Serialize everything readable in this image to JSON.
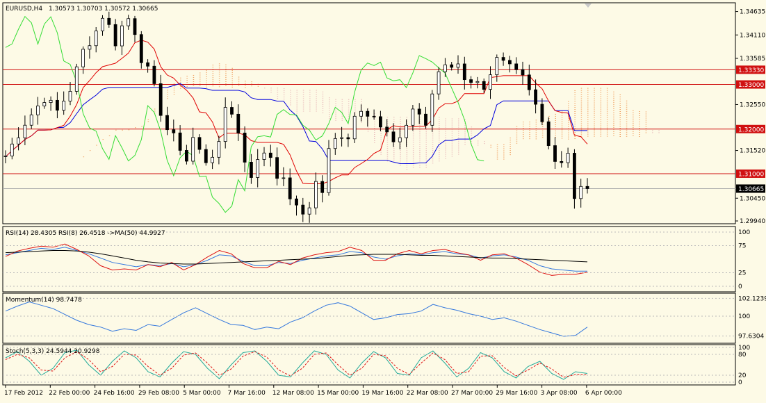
{
  "header": {
    "symbol": "EURUSD,H4",
    "ohlc": "1.30573 1.30703 1.30572 1.30665"
  },
  "colors": {
    "background": "#fdfae6",
    "candle": "#000000",
    "tenkan": "#e00000",
    "kijun": "#0000dd",
    "chikou": "#33dd33",
    "cloud_up": "#f0a060",
    "cloud_down": "#e8b8b8",
    "hline": "#d01010",
    "rsi14": "#3377dd",
    "rsi8": "#dd1111",
    "rsi_ma": "#000000",
    "momentum": "#3377dd",
    "stoch_main": "#22aa99",
    "stoch_signal": "#dd1111"
  },
  "chart_data": [
    {
      "type": "candlestick",
      "title": "EURUSD,H4",
      "ylim": [
        1.2994,
        1.348
      ],
      "y_ticks": [
        "1.34635",
        "1.34110",
        "1.33585",
        "1.32550",
        "1.31520",
        "1.30450",
        "1.29940"
      ],
      "hlines": [
        {
          "value": 1.3333,
          "label": "1.33330"
        },
        {
          "value": 1.33,
          "label": "1.33000"
        },
        {
          "value": 1.32,
          "label": "1.32000"
        },
        {
          "value": 1.31,
          "label": "1.31000"
        }
      ],
      "current_price": {
        "value": 1.30665,
        "label": "1.30665"
      },
      "x_ticks": [
        "17 Feb 2012",
        "22 Feb 00:00",
        "24 Feb 16:00",
        "29 Feb 08:00",
        "5 Mar 00:00",
        "7 Mar 16:00",
        "12 Mar 08:00",
        "15 Mar 00:00",
        "19 Mar 16:00",
        "22 Mar 08:00",
        "27 Mar 00:00",
        "29 Mar 16:00",
        "3 Apr 08:00",
        "6 Apr 00:00"
      ],
      "close_path": [
        [
          0,
          1.314
        ],
        [
          3,
          1.3215
        ],
        [
          6,
          1.327
        ],
        [
          8,
          1.324
        ],
        [
          10,
          1.329
        ],
        [
          12,
          1.3375
        ],
        [
          14,
          1.342
        ],
        [
          15,
          1.3455
        ],
        [
          16,
          1.343
        ],
        [
          17,
          1.3395
        ],
        [
          18,
          1.343
        ],
        [
          19,
          1.3448
        ],
        [
          20,
          1.342
        ],
        [
          21,
          1.336
        ],
        [
          22,
          1.333
        ],
        [
          23,
          1.329
        ],
        [
          24,
          1.324
        ],
        [
          25,
          1.32
        ],
        [
          26,
          1.318
        ],
        [
          27,
          1.316
        ],
        [
          28,
          1.313
        ],
        [
          29,
          1.318
        ],
        [
          30,
          1.315
        ],
        [
          31,
          1.313
        ],
        [
          33,
          1.316
        ],
        [
          34,
          1.325
        ],
        [
          35,
          1.324
        ],
        [
          36,
          1.319
        ],
        [
          37,
          1.313
        ],
        [
          38,
          1.31
        ],
        [
          40,
          1.315
        ],
        [
          41,
          1.314
        ],
        [
          42,
          1.31
        ],
        [
          43,
          1.308
        ],
        [
          44,
          1.305
        ],
        [
          45,
          1.302
        ],
        [
          46,
          1.301
        ],
        [
          47,
          1.303
        ],
        [
          48,
          1.308
        ],
        [
          49,
          1.306
        ],
        [
          50,
          1.315
        ],
        [
          51,
          1.3175
        ],
        [
          52,
          1.319
        ],
        [
          53,
          1.3185
        ],
        [
          54,
          1.323
        ],
        [
          55,
          1.325
        ],
        [
          56,
          1.324
        ],
        [
          57,
          1.323
        ],
        [
          58,
          1.32
        ],
        [
          59,
          1.319
        ],
        [
          60,
          1.316
        ],
        [
          62,
          1.321
        ],
        [
          63,
          1.3245
        ],
        [
          64,
          1.3235
        ],
        [
          65,
          1.32
        ],
        [
          66,
          1.328
        ],
        [
          67,
          1.333
        ],
        [
          68,
          1.335
        ],
        [
          69,
          1.3345
        ],
        [
          70,
          1.334
        ],
        [
          71,
          1.332
        ],
        [
          72,
          1.331
        ],
        [
          73,
          1.33
        ],
        [
          74,
          1.328
        ],
        [
          75,
          1.331
        ],
        [
          76,
          1.335
        ],
        [
          77,
          1.3345
        ],
        [
          78,
          1.334
        ],
        [
          79,
          1.333
        ],
        [
          80,
          1.332
        ],
        [
          81,
          1.33
        ],
        [
          82,
          1.326
        ],
        [
          83,
          1.322
        ],
        [
          84,
          1.317
        ],
        [
          85,
          1.313
        ],
        [
          86,
          1.312
        ],
        [
          87,
          1.314
        ],
        [
          88,
          1.305
        ],
        [
          89,
          1.306
        ],
        [
          90,
          1.3067
        ]
      ],
      "indicators": [
        "Ichimoku Kinko Hyo"
      ]
    },
    {
      "type": "line",
      "title": "RSI(14) 28.4305",
      "legend": [
        "RSI(14) 28.4305",
        "RSI(8) 26.4518",
        "->MA(50) 44.9927"
      ],
      "ylim": [
        0,
        100
      ],
      "y_ticks": [
        "100",
        "75",
        "25",
        "0"
      ],
      "series": [
        {
          "name": "RSI(14) 28.4305",
          "values": [
            58,
            62,
            66,
            70,
            68,
            72,
            66,
            60,
            52,
            44,
            40,
            36,
            40,
            38,
            42,
            36,
            40,
            48,
            58,
            56,
            46,
            38,
            38,
            44,
            42,
            48,
            52,
            56,
            58,
            64,
            62,
            54,
            50,
            56,
            60,
            58,
            62,
            64,
            60,
            58,
            52,
            56,
            58,
            54,
            48,
            38,
            32,
            30,
            28,
            28
          ]
        },
        {
          "name": "RSI(8) 26.4518",
          "values": [
            55,
            65,
            70,
            74,
            72,
            78,
            68,
            56,
            38,
            30,
            32,
            30,
            40,
            36,
            44,
            30,
            40,
            54,
            66,
            60,
            42,
            34,
            34,
            46,
            40,
            52,
            58,
            62,
            64,
            72,
            66,
            48,
            48,
            60,
            66,
            60,
            66,
            68,
            62,
            58,
            48,
            58,
            60,
            52,
            40,
            26,
            20,
            22,
            22,
            26
          ]
        },
        {
          "name": "->MA(50) 44.9927",
          "values": [
            62,
            63,
            64,
            65,
            66,
            66,
            65,
            63,
            60,
            56,
            52,
            48,
            45,
            43,
            42,
            41,
            41,
            42,
            43,
            44,
            45,
            46,
            47,
            48,
            49,
            50,
            51,
            53,
            55,
            57,
            58,
            59,
            59,
            59,
            58,
            57,
            57,
            56,
            55,
            54,
            53,
            52,
            52,
            51,
            50,
            49,
            48,
            47,
            46,
            45
          ]
        }
      ]
    },
    {
      "type": "line",
      "title": "Momentum(14) 98.7478",
      "ylim": [
        97.1,
        102.4
      ],
      "y_ticks": [
        "102.1239",
        "100",
        "97.6304"
      ],
      "series": [
        {
          "name": "Momentum(14) 98.7478",
          "values": [
            100.6,
            101.2,
            101.7,
            101.3,
            100.9,
            100.2,
            99.5,
            99.0,
            98.7,
            98.2,
            98.5,
            98.3,
            99.0,
            98.8,
            99.6,
            100.4,
            101.0,
            100.3,
            99.6,
            99.0,
            98.9,
            98.4,
            98.7,
            98.5,
            99.3,
            99.8,
            100.6,
            101.3,
            101.6,
            101.2,
            100.4,
            99.6,
            99.8,
            100.2,
            100.3,
            100.6,
            101.4,
            101.0,
            100.7,
            100.3,
            100.0,
            99.6,
            99.8,
            99.4,
            98.9,
            98.4,
            98.0,
            97.6,
            97.7,
            98.7
          ]
        }
      ]
    },
    {
      "type": "line",
      "title": "Stoch(5,3,3) 24.5944 20.9298",
      "ylim": [
        0,
        100
      ],
      "y_ticks": [
        "100",
        "80",
        "20",
        "0"
      ],
      "series": [
        {
          "name": "Stoch(5,3,3) 24.5944",
          "values": [
            70,
            88,
            60,
            20,
            40,
            85,
            92,
            50,
            20,
            60,
            90,
            70,
            30,
            15,
            55,
            88,
            80,
            40,
            10,
            50,
            85,
            90,
            60,
            20,
            15,
            55,
            90,
            80,
            35,
            12,
            55,
            88,
            70,
            25,
            20,
            70,
            90,
            55,
            15,
            40,
            85,
            70,
            30,
            12,
            45,
            60,
            25,
            8,
            30,
            25
          ]
        },
        {
          "name": "20.9298",
          "values": [
            65,
            80,
            70,
            35,
            32,
            70,
            88,
            65,
            30,
            45,
            80,
            78,
            45,
            20,
            40,
            78,
            84,
            55,
            20,
            38,
            75,
            88,
            72,
            35,
            18,
            40,
            80,
            84,
            50,
            20,
            40,
            80,
            76,
            40,
            22,
            55,
            84,
            65,
            25,
            30,
            75,
            76,
            42,
            18,
            35,
            55,
            38,
            14,
            22,
            21
          ]
        }
      ]
    }
  ]
}
